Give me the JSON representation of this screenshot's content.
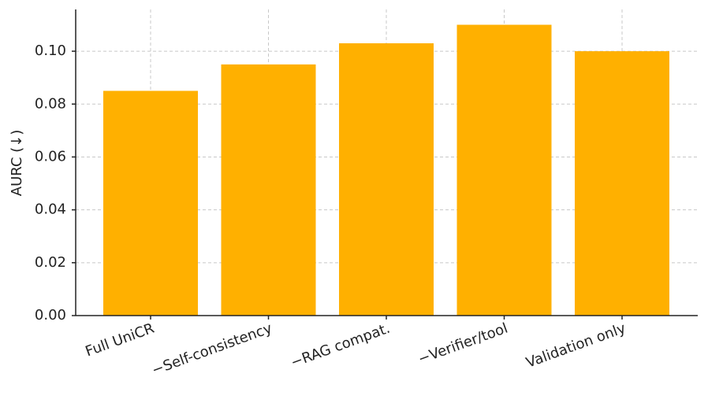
{
  "chart_data": {
    "type": "bar",
    "y_label": "AURC (↓)",
    "categories": [
      "Full UniCR",
      "−Self-consistency",
      "−RAG compat.",
      "−Verifier/tool",
      "Validation only"
    ],
    "values": [
      0.085,
      0.095,
      0.103,
      0.11,
      0.1
    ],
    "color": "#ffb000",
    "ylim": [
      0,
      0.1158
    ],
    "yticks": [
      {
        "value": 0,
        "label": "0.00"
      },
      0.02,
      0.04,
      0.06,
      0.08,
      {
        "value": 0.1,
        "label": "0.10"
      }
    ],
    "grid": true
  }
}
